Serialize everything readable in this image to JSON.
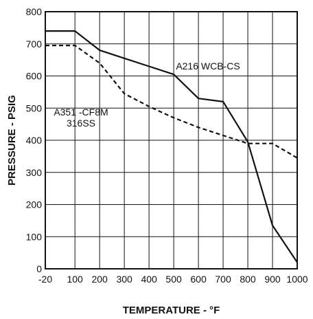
{
  "chart_data": {
    "type": "line",
    "xlabel": "TEMPERATURE - °F",
    "ylabel": "PRESSURE - PSIG",
    "xlim": [
      -20,
      1000
    ],
    "ylim": [
      0,
      800
    ],
    "x_ticks": [
      -20,
      100,
      200,
      300,
      400,
      500,
      600,
      700,
      800,
      900,
      1000
    ],
    "x_tick_labels": [
      "-20",
      "100",
      "200",
      "300",
      "400",
      "500",
      "600",
      "700",
      "800",
      "900",
      "1000"
    ],
    "y_ticks": [
      0,
      100,
      200,
      300,
      400,
      500,
      600,
      700,
      800
    ],
    "y_tick_labels": [
      "0",
      "100",
      "200",
      "300",
      "400",
      "500",
      "600",
      "700",
      "800"
    ],
    "grid": true,
    "series": [
      {
        "name": "A216 WCB-CS",
        "style": "solid",
        "x": [
          -20,
          100,
          200,
          300,
          400,
          500,
          600,
          700,
          800,
          900,
          1000
        ],
        "y": [
          740,
          740,
          680,
          655,
          630,
          605,
          530,
          520,
          395,
          135,
          20
        ]
      },
      {
        "name": "A351 -CF8M 316SS",
        "style": "dashed",
        "x": [
          -20,
          100,
          200,
          300,
          400,
          500,
          600,
          700,
          800,
          900,
          1000
        ],
        "y": [
          695,
          695,
          640,
          545,
          505,
          470,
          440,
          415,
          390,
          390,
          345
        ]
      }
    ],
    "annotations": [
      {
        "lines": [
          "A216 WCB-CS"
        ],
        "series": 0
      },
      {
        "lines": [
          "A351 -CF8M",
          "316SS"
        ],
        "series": 1
      }
    ],
    "colors": {
      "line": "#111111",
      "grid": "#111111",
      "background": "#ffffff"
    }
  }
}
